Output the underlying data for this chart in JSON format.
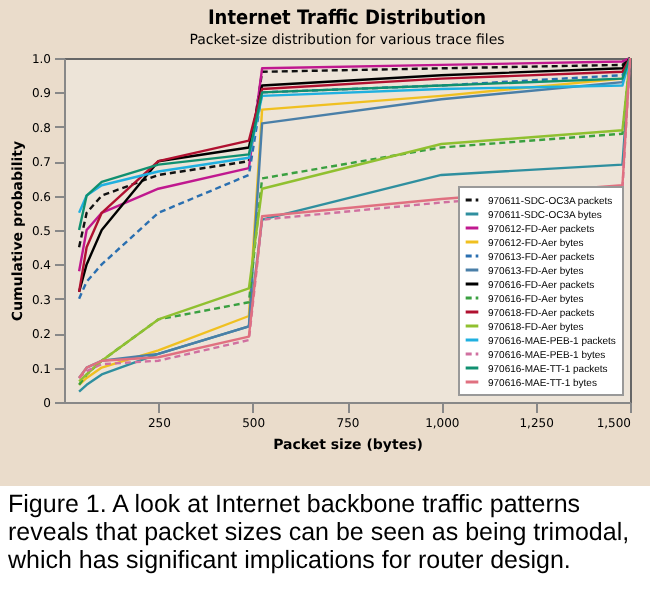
{
  "chart_data": {
    "type": "line",
    "title": "Internet Traffic Distribution",
    "subtitle": "Packet-size distribution for various trace files",
    "xlabel": "Packet size (bytes)",
    "ylabel": "Cumulative probability",
    "x": [
      40,
      60,
      100,
      250,
      490,
      525,
      1000,
      1480,
      1500
    ],
    "xlim": [
      0,
      1500
    ],
    "xticks": [
      250,
      500,
      750,
      {
        "value": 1000,
        "label": "1,000"
      },
      {
        "value": 1250,
        "label": "1,250"
      },
      {
        "value": 1500,
        "label": "1,500"
      }
    ],
    "ylim": [
      0,
      1
    ],
    "yticks": [
      0,
      0.1,
      0.2,
      0.3,
      0.4,
      0.5,
      0.6,
      0.7,
      0.8,
      0.9,
      {
        "value": 1,
        "label": "1.0"
      }
    ],
    "legend": "bottom right",
    "grid": false,
    "marker": "none",
    "series": [
      {
        "name": "970611-SDC-OC3A packets",
        "color": "#111111",
        "line_style": "dashed",
        "values": [
          0.45,
          0.55,
          0.6,
          0.66,
          0.7,
          0.96,
          0.97,
          0.98,
          1.0
        ]
      },
      {
        "name": "970611-SDC-OC3A bytes",
        "color": "#2f8f9f",
        "line_style": "solid",
        "values": [
          0.03,
          0.05,
          0.08,
          0.14,
          0.22,
          0.53,
          0.66,
          0.69,
          1.0
        ]
      },
      {
        "name": "970612-FD-Aer packets",
        "color": "#c0188f",
        "line_style": "solid",
        "values": [
          0.38,
          0.5,
          0.55,
          0.62,
          0.68,
          0.97,
          0.98,
          0.99,
          1.0
        ]
      },
      {
        "name": "970612-FD-Aer bytes",
        "color": "#f0c020",
        "line_style": "solid",
        "values": [
          0.05,
          0.07,
          0.1,
          0.15,
          0.25,
          0.85,
          0.89,
          0.94,
          1.0
        ]
      },
      {
        "name": "970613-FD-Aer packets",
        "color": "#2a6fb0",
        "line_style": "dashed",
        "values": [
          0.3,
          0.35,
          0.4,
          0.55,
          0.66,
          0.9,
          0.92,
          0.95,
          1.0
        ]
      },
      {
        "name": "970613-FD-Aer bytes",
        "color": "#4a7fa8",
        "line_style": "solid",
        "values": [
          0.07,
          0.1,
          0.12,
          0.14,
          0.22,
          0.81,
          0.88,
          0.93,
          1.0
        ]
      },
      {
        "name": "970616-FD-Aer packets",
        "color": "#000000",
        "line_style": "solid",
        "values": [
          0.32,
          0.4,
          0.5,
          0.7,
          0.74,
          0.92,
          0.95,
          0.97,
          1.0
        ]
      },
      {
        "name": "970616-FD-Aer bytes",
        "color": "#3aa040",
        "line_style": "dashed",
        "values": [
          0.05,
          0.08,
          0.12,
          0.24,
          0.29,
          0.65,
          0.74,
          0.78,
          1.0
        ]
      },
      {
        "name": "970618-FD-Aer packets",
        "color": "#b01030",
        "line_style": "solid",
        "values": [
          0.32,
          0.45,
          0.55,
          0.7,
          0.76,
          0.91,
          0.94,
          0.96,
          1.0
        ]
      },
      {
        "name": "970618-FD-Aer bytes",
        "color": "#90c030",
        "line_style": "solid",
        "values": [
          0.06,
          0.08,
          0.12,
          0.24,
          0.33,
          0.62,
          0.75,
          0.79,
          1.0
        ]
      },
      {
        "name": "970616-MAE-PEB-1 packets",
        "color": "#20b0e0",
        "line_style": "solid",
        "values": [
          0.55,
          0.6,
          0.63,
          0.67,
          0.71,
          0.89,
          0.91,
          0.92,
          1.0
        ]
      },
      {
        "name": "970616-MAE-PEB-1 bytes",
        "color": "#d070a0",
        "line_style": "dashed",
        "values": [
          0.07,
          0.09,
          0.11,
          0.12,
          0.18,
          0.53,
          0.58,
          0.62,
          1.0
        ]
      },
      {
        "name": "970616-MAE-TT-1 packets",
        "color": "#109070",
        "line_style": "solid",
        "values": [
          0.5,
          0.6,
          0.64,
          0.69,
          0.72,
          0.9,
          0.92,
          0.94,
          1.0
        ]
      },
      {
        "name": "970616-MAE-TT-1 bytes",
        "color": "#e07080",
        "line_style": "solid",
        "values": [
          0.07,
          0.1,
          0.12,
          0.13,
          0.19,
          0.54,
          0.59,
          0.63,
          1.0
        ]
      }
    ],
    "annotations": [
      "Figure 1. A look at Internet backbone traffic patterns reveals that packet sizes can be seen as being trimodal, which has significant implications for router design."
    ]
  }
}
